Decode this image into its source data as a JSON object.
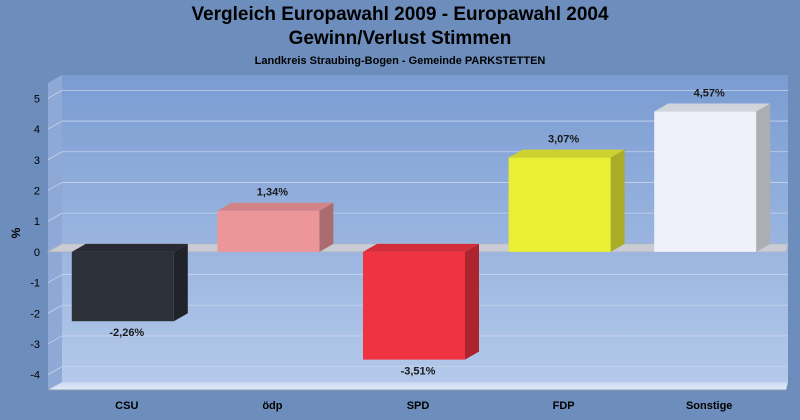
{
  "header": {
    "title_line1": "Vergleich Europawahl 2009 - Europawahl 2004",
    "title_line2": "Gewinn/Verlust Stimmen",
    "subtitle": "Landkreis Straubing-Bogen - Gemeinde PARKSTETTEN"
  },
  "chart_data": {
    "type": "bar",
    "title": "Vergleich Europawahl 2009 - Europawahl 2004 / Gewinn/Verlust Stimmen",
    "subtitle": "Landkreis Straubing-Bogen - Gemeinde PARKSTETTEN",
    "xlabel": "",
    "ylabel": "%",
    "ylim": [
      -4.5,
      5.5
    ],
    "yticks": [
      -4,
      -3,
      -2,
      -1,
      0,
      1,
      2,
      3,
      4,
      5
    ],
    "categories": [
      "CSU",
      "ödp",
      "SPD",
      "FDP",
      "Sonstige"
    ],
    "values": [
      -2.26,
      1.34,
      -3.51,
      3.07,
      4.57
    ],
    "data_labels": [
      "-2,26%",
      "1,34%",
      "-3,51%",
      "3,07%",
      "4,57%"
    ],
    "colors": [
      "#2c3039",
      "#ec9699",
      "#ef3340",
      "#eaef35",
      "#eef1f9"
    ],
    "grid": true,
    "legend": "none"
  }
}
